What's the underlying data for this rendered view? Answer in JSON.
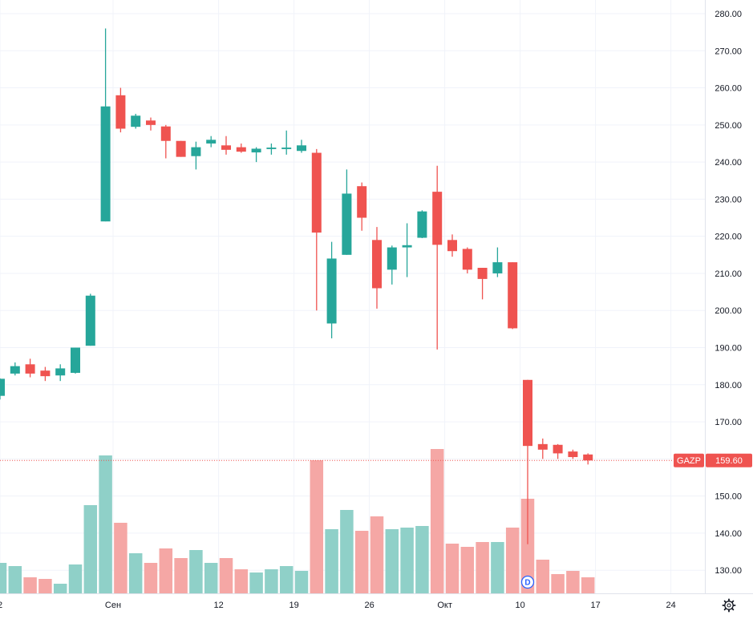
{
  "chart_data": {
    "type": "candlestick",
    "ticker": "GAZP",
    "last_price": 159.6,
    "last_price_label": "159.60",
    "y_ticks": [
      "280.00",
      "270.00",
      "260.00",
      "250.00",
      "240.00",
      "230.00",
      "220.00",
      "210.00",
      "200.00",
      "190.00",
      "180.00",
      "170.00",
      "160.00",
      "150.00",
      "140.00",
      "130.00"
    ],
    "x_ticks": [
      "2",
      "Сен",
      "12",
      "19",
      "26",
      "Окт",
      "10",
      "17",
      "24"
    ],
    "ylim": [
      124,
      282
    ],
    "grid": true,
    "colors": {
      "up": "#26a69a",
      "down": "#ef5350",
      "up_volume": "#8fd0c8",
      "down_volume": "#f5a7a5",
      "grid": "#f0f3fa",
      "axis_text": "#131722",
      "event": "#2962ff"
    },
    "event_marker": {
      "label": "D",
      "candle_index": 35
    },
    "candles": [
      {
        "open": 177.0,
        "high": 181.7,
        "low": 176.0,
        "close": 181.6
      },
      {
        "open": 183.0,
        "high": 186.0,
        "low": 182.5,
        "close": 185.0
      },
      {
        "open": 185.5,
        "high": 187.0,
        "low": 182.0,
        "close": 183.0
      },
      {
        "open": 183.8,
        "high": 184.8,
        "low": 181.0,
        "close": 182.3
      },
      {
        "open": 182.5,
        "high": 185.5,
        "low": 181.0,
        "close": 184.4
      },
      {
        "open": 183.2,
        "high": 190.0,
        "low": 183.0,
        "close": 190.0
      },
      {
        "open": 190.5,
        "high": 204.5,
        "low": 190.5,
        "close": 204.0
      },
      {
        "open": 224.0,
        "high": 276.0,
        "low": 224.0,
        "close": 255.0
      },
      {
        "open": 258.0,
        "high": 260.0,
        "low": 248.0,
        "close": 249.0
      },
      {
        "open": 249.5,
        "high": 253.0,
        "low": 249.0,
        "close": 252.5
      },
      {
        "open": 251.2,
        "high": 252.0,
        "low": 248.5,
        "close": 250.0
      },
      {
        "open": 249.6,
        "high": 250.0,
        "low": 241.0,
        "close": 245.7
      },
      {
        "open": 245.7,
        "high": 245.7,
        "low": 241.4,
        "close": 241.4
      },
      {
        "open": 241.6,
        "high": 245.5,
        "low": 238.0,
        "close": 244.0
      },
      {
        "open": 245.0,
        "high": 247.0,
        "low": 244.0,
        "close": 246.0
      },
      {
        "open": 244.5,
        "high": 247.0,
        "low": 242.0,
        "close": 243.3
      },
      {
        "open": 244.0,
        "high": 245.0,
        "low": 242.5,
        "close": 242.8
      },
      {
        "open": 242.6,
        "high": 244.0,
        "low": 240.0,
        "close": 243.6
      },
      {
        "open": 243.5,
        "high": 245.0,
        "low": 242.0,
        "close": 243.9
      },
      {
        "open": 243.5,
        "high": 248.5,
        "low": 242.0,
        "close": 243.9
      },
      {
        "open": 243.0,
        "high": 246.0,
        "low": 242.5,
        "close": 244.5
      },
      {
        "open": 242.5,
        "high": 243.5,
        "low": 200.0,
        "close": 221.0
      },
      {
        "open": 196.5,
        "high": 218.5,
        "low": 192.5,
        "close": 214.0
      },
      {
        "open": 215.0,
        "high": 238.0,
        "low": 215.0,
        "close": 231.5
      },
      {
        "open": 233.5,
        "high": 234.5,
        "low": 221.5,
        "close": 225.0
      },
      {
        "open": 219.0,
        "high": 222.5,
        "low": 200.5,
        "close": 206.0
      },
      {
        "open": 211.0,
        "high": 217.5,
        "low": 207.0,
        "close": 217.0
      },
      {
        "open": 217.0,
        "high": 223.5,
        "low": 209.0,
        "close": 217.6
      },
      {
        "open": 219.6,
        "high": 227.0,
        "low": 219.5,
        "close": 226.7
      },
      {
        "open": 232.0,
        "high": 239.0,
        "low": 189.5,
        "close": 217.7
      },
      {
        "open": 219.0,
        "high": 220.5,
        "low": 214.5,
        "close": 216.0
      },
      {
        "open": 216.6,
        "high": 217.0,
        "low": 210.0,
        "close": 211.0
      },
      {
        "open": 211.5,
        "high": 211.5,
        "low": 203.0,
        "close": 208.5
      },
      {
        "open": 210.0,
        "high": 217.0,
        "low": 209.0,
        "close": 213.0
      },
      {
        "open": 213.0,
        "high": 213.0,
        "low": 195.0,
        "close": 195.2
      },
      {
        "open": 181.3,
        "high": 181.3,
        "low": 137.0,
        "close": 163.5
      },
      {
        "open": 164.0,
        "high": 165.5,
        "low": 160.0,
        "close": 162.5
      },
      {
        "open": 163.8,
        "high": 164.0,
        "low": 160.0,
        "close": 161.5
      },
      {
        "open": 162.0,
        "high": 162.5,
        "low": 160.0,
        "close": 160.5
      },
      {
        "open": 161.2,
        "high": 161.5,
        "low": 158.5,
        "close": 159.6
      }
    ],
    "volumes": [
      0.19,
      0.17,
      0.1,
      0.09,
      0.06,
      0.18,
      0.55,
      0.86,
      0.44,
      0.25,
      0.19,
      0.28,
      0.22,
      0.27,
      0.19,
      0.22,
      0.15,
      0.13,
      0.15,
      0.17,
      0.14,
      0.83,
      0.4,
      0.52,
      0.39,
      0.48,
      0.4,
      0.41,
      0.42,
      0.9,
      0.31,
      0.29,
      0.32,
      0.32,
      0.41,
      0.59,
      0.21,
      0.12,
      0.14,
      0.1
    ]
  }
}
